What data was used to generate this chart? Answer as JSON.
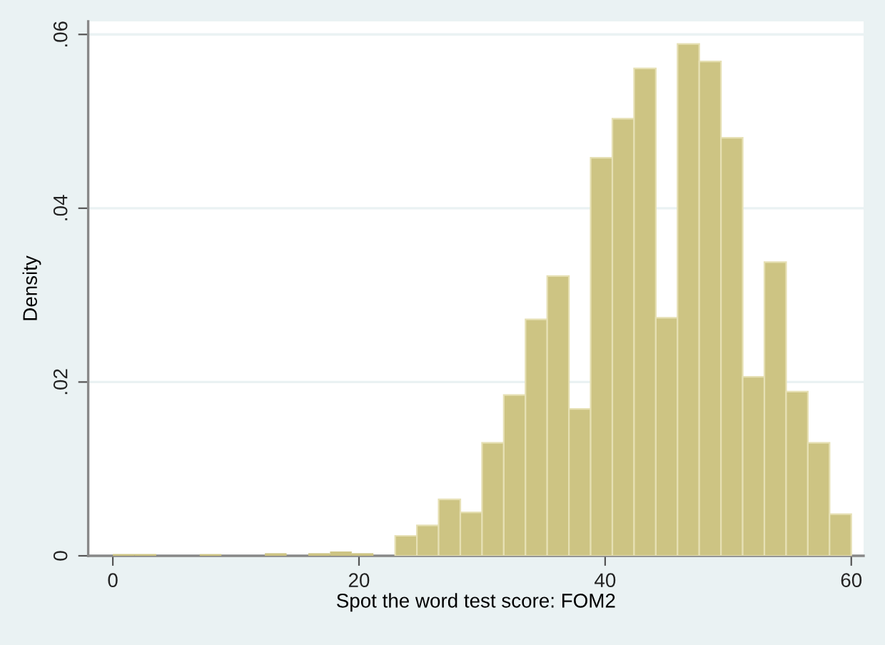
{
  "chart_data": {
    "type": "histogram",
    "xlabel": "Spot the word test score: FOM2",
    "ylabel": "Density",
    "bins": [
      0,
      1.765,
      3.529,
      5.294,
      7.059,
      8.824,
      10.588,
      12.353,
      14.118,
      15.882,
      17.647,
      19.412,
      21.176,
      22.941,
      24.706,
      26.471,
      28.235,
      30,
      31.765,
      33.529,
      35.294,
      37.059,
      38.824,
      40.588,
      42.353,
      44.118,
      45.882,
      47.647,
      49.412,
      51.176,
      52.941,
      54.706,
      56.471,
      58.235,
      60
    ],
    "values": [
      0.0002,
      0.0002,
      0,
      0,
      0.0002,
      0,
      0,
      0.0003,
      0,
      0.0003,
      0.0005,
      0.0003,
      0,
      0.0023,
      0.0035,
      0.0065,
      0.005,
      0.013,
      0.0185,
      0.0272,
      0.0322,
      0.0169,
      0.0458,
      0.0503,
      0.0561,
      0.0274,
      0.0589,
      0.0569,
      0.0481,
      0.0206,
      0.0338,
      0.0189,
      0.013,
      0.0048
    ],
    "color": "#cdc483",
    "xlim": [
      -2,
      61
    ],
    "ylim": [
      0,
      0.0615
    ],
    "xticks": [
      0,
      20,
      40,
      60
    ],
    "yticks": [
      0,
      {
        "value": 0.02,
        "label": ".02"
      },
      {
        "value": 0.04,
        "label": ".04"
      },
      {
        "value": 0.06,
        "label": ".06"
      }
    ],
    "grid": "y"
  }
}
